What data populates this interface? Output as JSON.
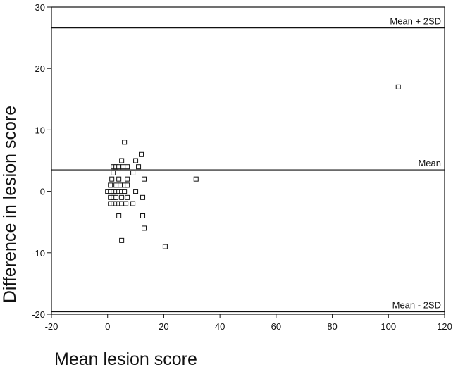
{
  "chart_data": {
    "type": "scatter",
    "xlabel": "Mean lesion score",
    "ylabel": "Difference in lesion score",
    "xlim": [
      -20,
      120
    ],
    "ylim": [
      -20,
      30
    ],
    "xticks": [
      -20,
      0,
      20,
      40,
      60,
      80,
      100,
      120
    ],
    "yticks": [
      -20,
      -10,
      0,
      10,
      20,
      30
    ],
    "grid": false,
    "reference_lines": [
      {
        "label": "Mean + 2SD",
        "y": 26.6
      },
      {
        "label": "Mean",
        "y": 3.5
      },
      {
        "label": "Mean - 2SD",
        "y": -19.6
      }
    ],
    "points": [
      [
        103.5,
        17
      ],
      [
        31.5,
        2
      ],
      [
        20.5,
        -9
      ],
      [
        6,
        8
      ],
      [
        12,
        6
      ],
      [
        5,
        5
      ],
      [
        10,
        5
      ],
      [
        2,
        4
      ],
      [
        3,
        4
      ],
      [
        4,
        4
      ],
      [
        5.5,
        4
      ],
      [
        7,
        4
      ],
      [
        11,
        4
      ],
      [
        2,
        3
      ],
      [
        9,
        3
      ],
      [
        1.5,
        2
      ],
      [
        4,
        2
      ],
      [
        7,
        2
      ],
      [
        13,
        2
      ],
      [
        1,
        1
      ],
      [
        3,
        1
      ],
      [
        4.5,
        1
      ],
      [
        6,
        1
      ],
      [
        7,
        1
      ],
      [
        0,
        0
      ],
      [
        1,
        0
      ],
      [
        2,
        0
      ],
      [
        3,
        0
      ],
      [
        4,
        0
      ],
      [
        5,
        0
      ],
      [
        6,
        0
      ],
      [
        10,
        0
      ],
      [
        1,
        -1
      ],
      [
        2,
        -1
      ],
      [
        3,
        -1
      ],
      [
        5,
        -1
      ],
      [
        7,
        -1
      ],
      [
        12.5,
        -1
      ],
      [
        1,
        -2
      ],
      [
        2,
        -2
      ],
      [
        3,
        -2
      ],
      [
        4,
        -2
      ],
      [
        5,
        -2
      ],
      [
        6.5,
        -2
      ],
      [
        9,
        -2
      ],
      [
        4,
        -4
      ],
      [
        12.5,
        -4
      ],
      [
        13,
        -6
      ],
      [
        5,
        -8
      ]
    ]
  }
}
